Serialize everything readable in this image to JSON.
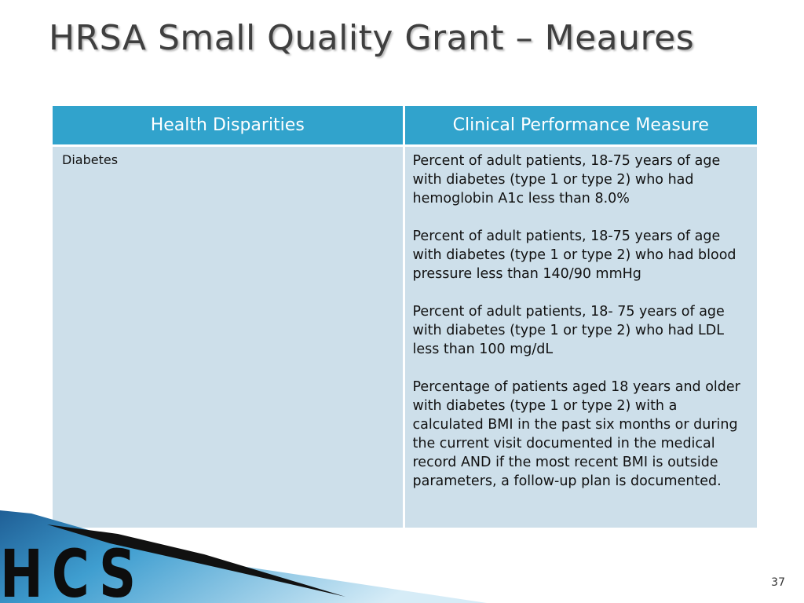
{
  "slide": {
    "title": "HRSA Small Quality Grant – Meaures",
    "page_number": "37"
  },
  "table": {
    "headers": [
      "Health Disparities",
      "Clinical Performance Measure"
    ],
    "rows": [
      {
        "disparity": "Diabetes",
        "measures": [
          "Percent of adult patients, 18-75 years of age with diabetes (type 1 or type 2) who had hemoglobin A1c less than 8.0%",
          "Percent of adult patients, 18-75 years of age with diabetes (type 1 or type 2) who had blood pressure less than 140/90 mmHg",
          "Percent of adult patients, 18- 75 years of age with diabetes (type 1 or type 2) who had LDL less than 100 mg/dL",
          "Percentage of patients aged 18 years and older with diabetes (type 1 or type 2) with a calculated BMI in the past six months or during the current visit documented in the medical record AND if the most recent BMI is outside parameters, a follow-up plan is documented."
        ]
      }
    ]
  },
  "logo": {
    "text": "HCS",
    "colors": {
      "header_fill": "#31a3cc",
      "cell_fill": "#cddfea",
      "swoosh_blue": "#2f7fb0",
      "swoosh_dark": "#111111"
    }
  }
}
